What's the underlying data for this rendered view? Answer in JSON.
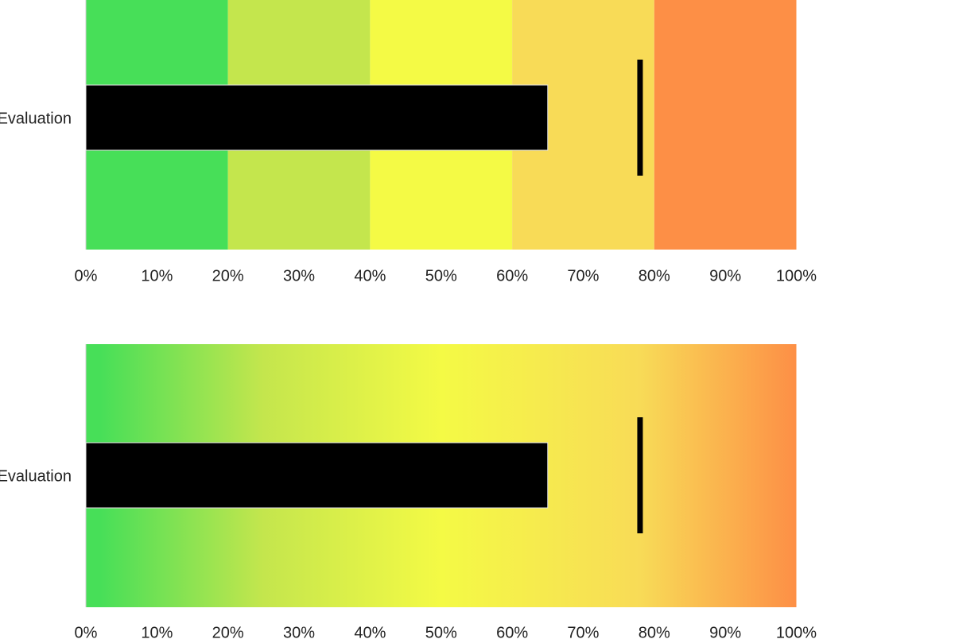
{
  "chart_data": [
    {
      "type": "bullet",
      "category": "Evaluation",
      "value": 65,
      "target": 78,
      "band_style": "solid",
      "bands": [
        {
          "from": 0,
          "to": 20,
          "color": "#47df58"
        },
        {
          "from": 20,
          "to": 40,
          "color": "#c4e64d"
        },
        {
          "from": 40,
          "to": 60,
          "color": "#f4fa45"
        },
        {
          "from": 60,
          "to": 80,
          "color": "#f8db57"
        },
        {
          "from": 80,
          "to": 100,
          "color": "#fd8f46"
        }
      ],
      "bar_color": "#000000",
      "target_color": "#000000",
      "xlim": [
        0,
        100
      ],
      "ticks": [
        "0%",
        "10%",
        "20%",
        "30%",
        "40%",
        "50%",
        "60%",
        "70%",
        "80%",
        "90%",
        "100%"
      ]
    },
    {
      "type": "bullet",
      "category": "Evaluation",
      "value": 65,
      "target": 78,
      "band_style": "gradient",
      "bands": [
        {
          "from": 0,
          "to": 20,
          "color": "#47df58"
        },
        {
          "from": 20,
          "to": 40,
          "color": "#c4e64d"
        },
        {
          "from": 40,
          "to": 60,
          "color": "#f4fa45"
        },
        {
          "from": 60,
          "to": 80,
          "color": "#f8db57"
        },
        {
          "from": 80,
          "to": 100,
          "color": "#fd8f46"
        }
      ],
      "bar_color": "#000000",
      "target_color": "#000000",
      "xlim": [
        0,
        100
      ],
      "ticks": [
        "0%",
        "10%",
        "20%",
        "30%",
        "40%",
        "50%",
        "60%",
        "70%",
        "80%",
        "90%",
        "100%"
      ]
    }
  ]
}
